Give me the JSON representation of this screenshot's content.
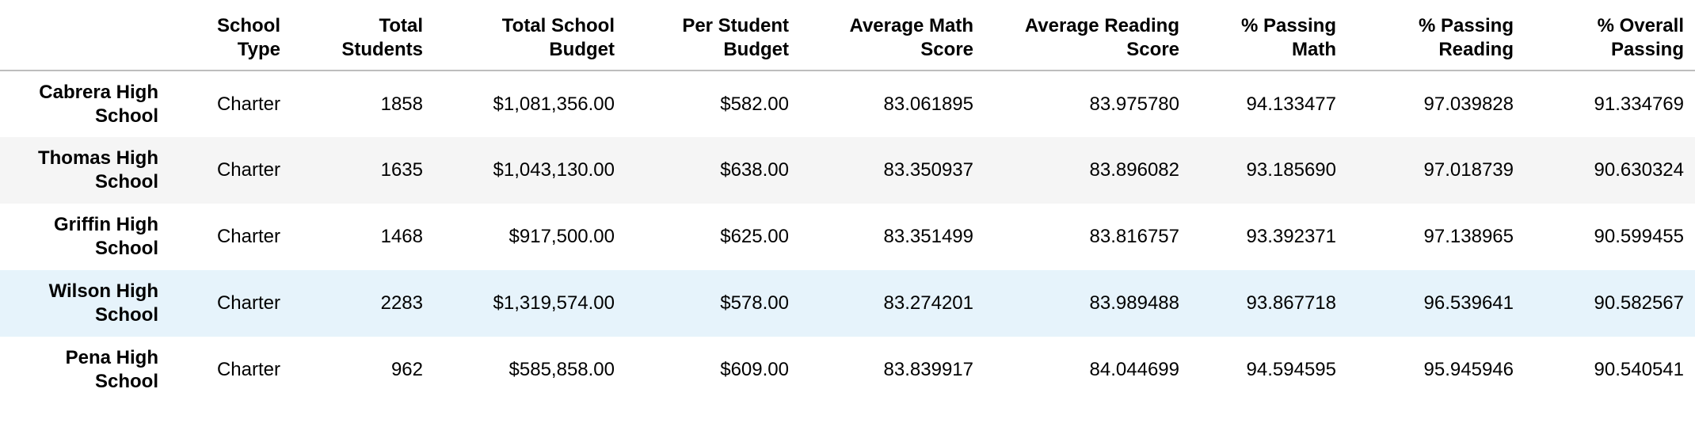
{
  "table": {
    "columns": [
      "",
      "School Type",
      "Total Students",
      "Total School Budget",
      "Per Student Budget",
      "Average Math Score",
      "Average Reading Score",
      "% Passing Math",
      "% Passing Reading",
      "% Overall Passing"
    ],
    "rows": [
      {
        "school": "Cabrera High School",
        "type": "Charter",
        "students": "1858",
        "budget": "$1,081,356.00",
        "per_student": "$582.00",
        "avg_math": "83.061895",
        "avg_reading": "83.975780",
        "pass_math": "94.133477",
        "pass_reading": "97.039828",
        "overall": "91.334769"
      },
      {
        "school": "Thomas High School",
        "type": "Charter",
        "students": "1635",
        "budget": "$1,043,130.00",
        "per_student": "$638.00",
        "avg_math": "83.350937",
        "avg_reading": "83.896082",
        "pass_math": "93.185690",
        "pass_reading": "97.018739",
        "overall": "90.630324"
      },
      {
        "school": "Griffin High School",
        "type": "Charter",
        "students": "1468",
        "budget": "$917,500.00",
        "per_student": "$625.00",
        "avg_math": "83.351499",
        "avg_reading": "83.816757",
        "pass_math": "93.392371",
        "pass_reading": "97.138965",
        "overall": "90.599455"
      },
      {
        "school": "Wilson High School",
        "type": "Charter",
        "students": "2283",
        "budget": "$1,319,574.00",
        "per_student": "$578.00",
        "avg_math": "83.274201",
        "avg_reading": "83.989488",
        "pass_math": "93.867718",
        "pass_reading": "96.539641",
        "overall": "90.582567"
      },
      {
        "school": "Pena High School",
        "type": "Charter",
        "students": "962",
        "budget": "$585,858.00",
        "per_student": "$609.00",
        "avg_math": "83.839917",
        "avg_reading": "84.044699",
        "pass_math": "94.594595",
        "pass_reading": "95.945946",
        "overall": "90.540541"
      }
    ]
  },
  "colors": {
    "header_border": "#bdbdbd",
    "row_stripe": "#f5f5f5",
    "row_hover": "#e6f3fb"
  }
}
